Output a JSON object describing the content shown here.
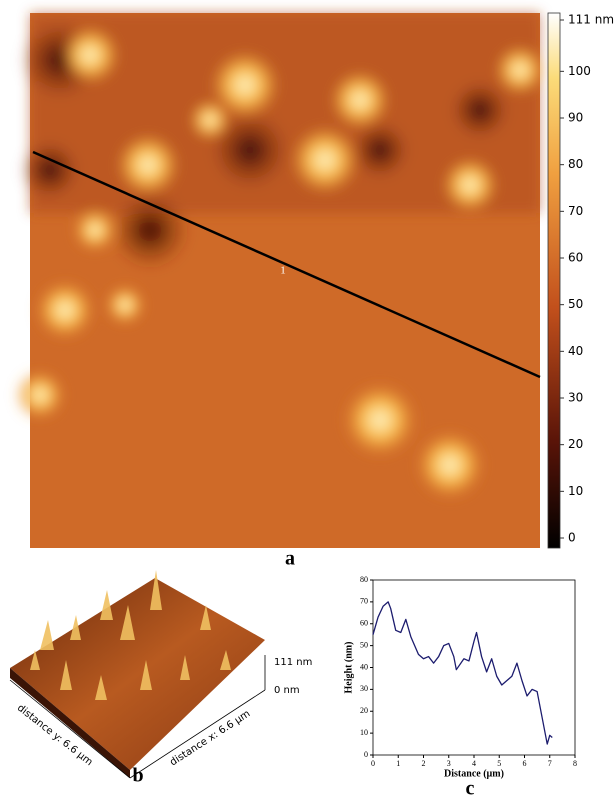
{
  "figure": {
    "panel_a": {
      "label": "a",
      "profile_marker": "1",
      "colorbar_lim": [
        0,
        111
      ],
      "colorbar_ticks": [
        0,
        10,
        20,
        30,
        40,
        50,
        60,
        70,
        80,
        90,
        100,
        {
          "value": 111,
          "label": "111 nm"
        }
      ]
    },
    "panel_b": {
      "label": "b",
      "z_top": "111 nm",
      "z_bottom": "0 nm",
      "axis_y": "distance y: 6.6 µm",
      "axis_x": "distance x: 6.6 µm"
    }
  },
  "chart_data": {
    "type": "line",
    "panel_label": "c",
    "xlabel": "Distance (µm)",
    "ylabel": "Height (nm)",
    "x": [
      0,
      0.2,
      0.4,
      0.6,
      0.7,
      0.9,
      1.1,
      1.3,
      1.5,
      1.8,
      2.0,
      2.2,
      2.4,
      2.6,
      2.8,
      3.0,
      3.2,
      3.3,
      3.6,
      3.8,
      4.0,
      4.1,
      4.3,
      4.5,
      4.7,
      4.9,
      5.1,
      5.3,
      5.5,
      5.7,
      5.9,
      6.1,
      6.3,
      6.5,
      6.7,
      6.9,
      7.0,
      7.1
    ],
    "values": [
      55,
      63,
      68,
      70,
      67,
      57,
      56,
      62,
      54,
      46,
      44,
      45,
      42,
      45,
      50,
      51,
      45,
      39,
      44,
      43,
      52,
      56,
      45,
      38,
      44,
      36,
      32,
      34,
      36,
      42,
      34,
      27,
      30,
      29,
      17,
      5,
      9,
      8
    ],
    "color": "#1c1c6e",
    "xlim": [
      0,
      8
    ],
    "xticks": [
      0,
      1,
      2,
      3,
      4,
      5,
      6,
      7,
      8
    ],
    "ylim": [
      0,
      80
    ],
    "yticks": [
      0,
      10,
      20,
      30,
      40,
      50,
      60,
      70,
      80
    ]
  }
}
